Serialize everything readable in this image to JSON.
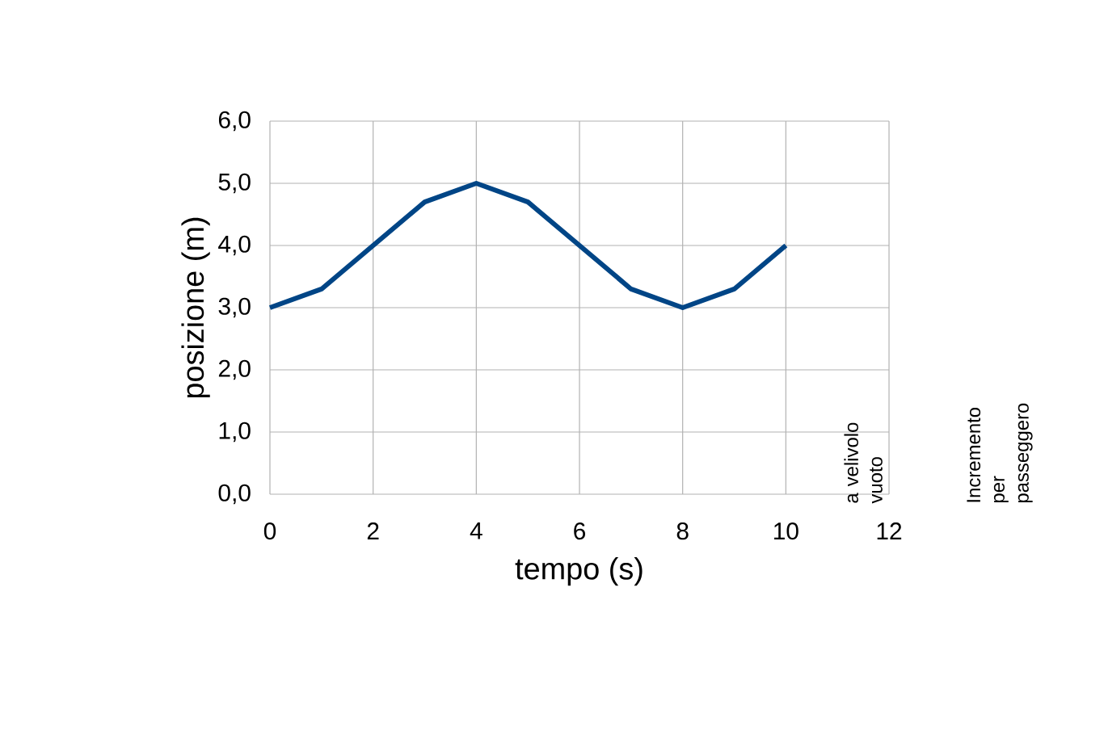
{
  "chart_data": {
    "type": "line",
    "xlabel": "tempo (s)",
    "ylabel": "posizione (m)",
    "x": [
      0,
      1,
      2,
      3,
      4,
      5,
      6,
      7,
      8,
      9,
      10
    ],
    "series": [
      {
        "color": "#004586",
        "values": [
          3.0,
          3.3,
          4.0,
          4.7,
          5.0,
          4.7,
          4.0,
          3.3,
          3.0,
          3.3,
          4.0
        ]
      }
    ],
    "xlim": [
      0,
      12
    ],
    "xticks": [
      0,
      2,
      4,
      6,
      8,
      10,
      12
    ],
    "ylim": [
      0,
      6
    ],
    "yticks": [
      {
        "value": 0,
        "label": "0,0"
      },
      {
        "value": 1,
        "label": "1,0"
      },
      {
        "value": 2,
        "label": "2,0"
      },
      {
        "value": 3,
        "label": "3,0"
      },
      {
        "value": 4,
        "label": "4,0"
      },
      {
        "value": 5,
        "label": "5,0"
      },
      {
        "value": 6,
        "label": "6,0"
      }
    ],
    "grid": true,
    "annotations": [
      "a velivolo vuoto",
      "Incremento per passeggero"
    ]
  }
}
